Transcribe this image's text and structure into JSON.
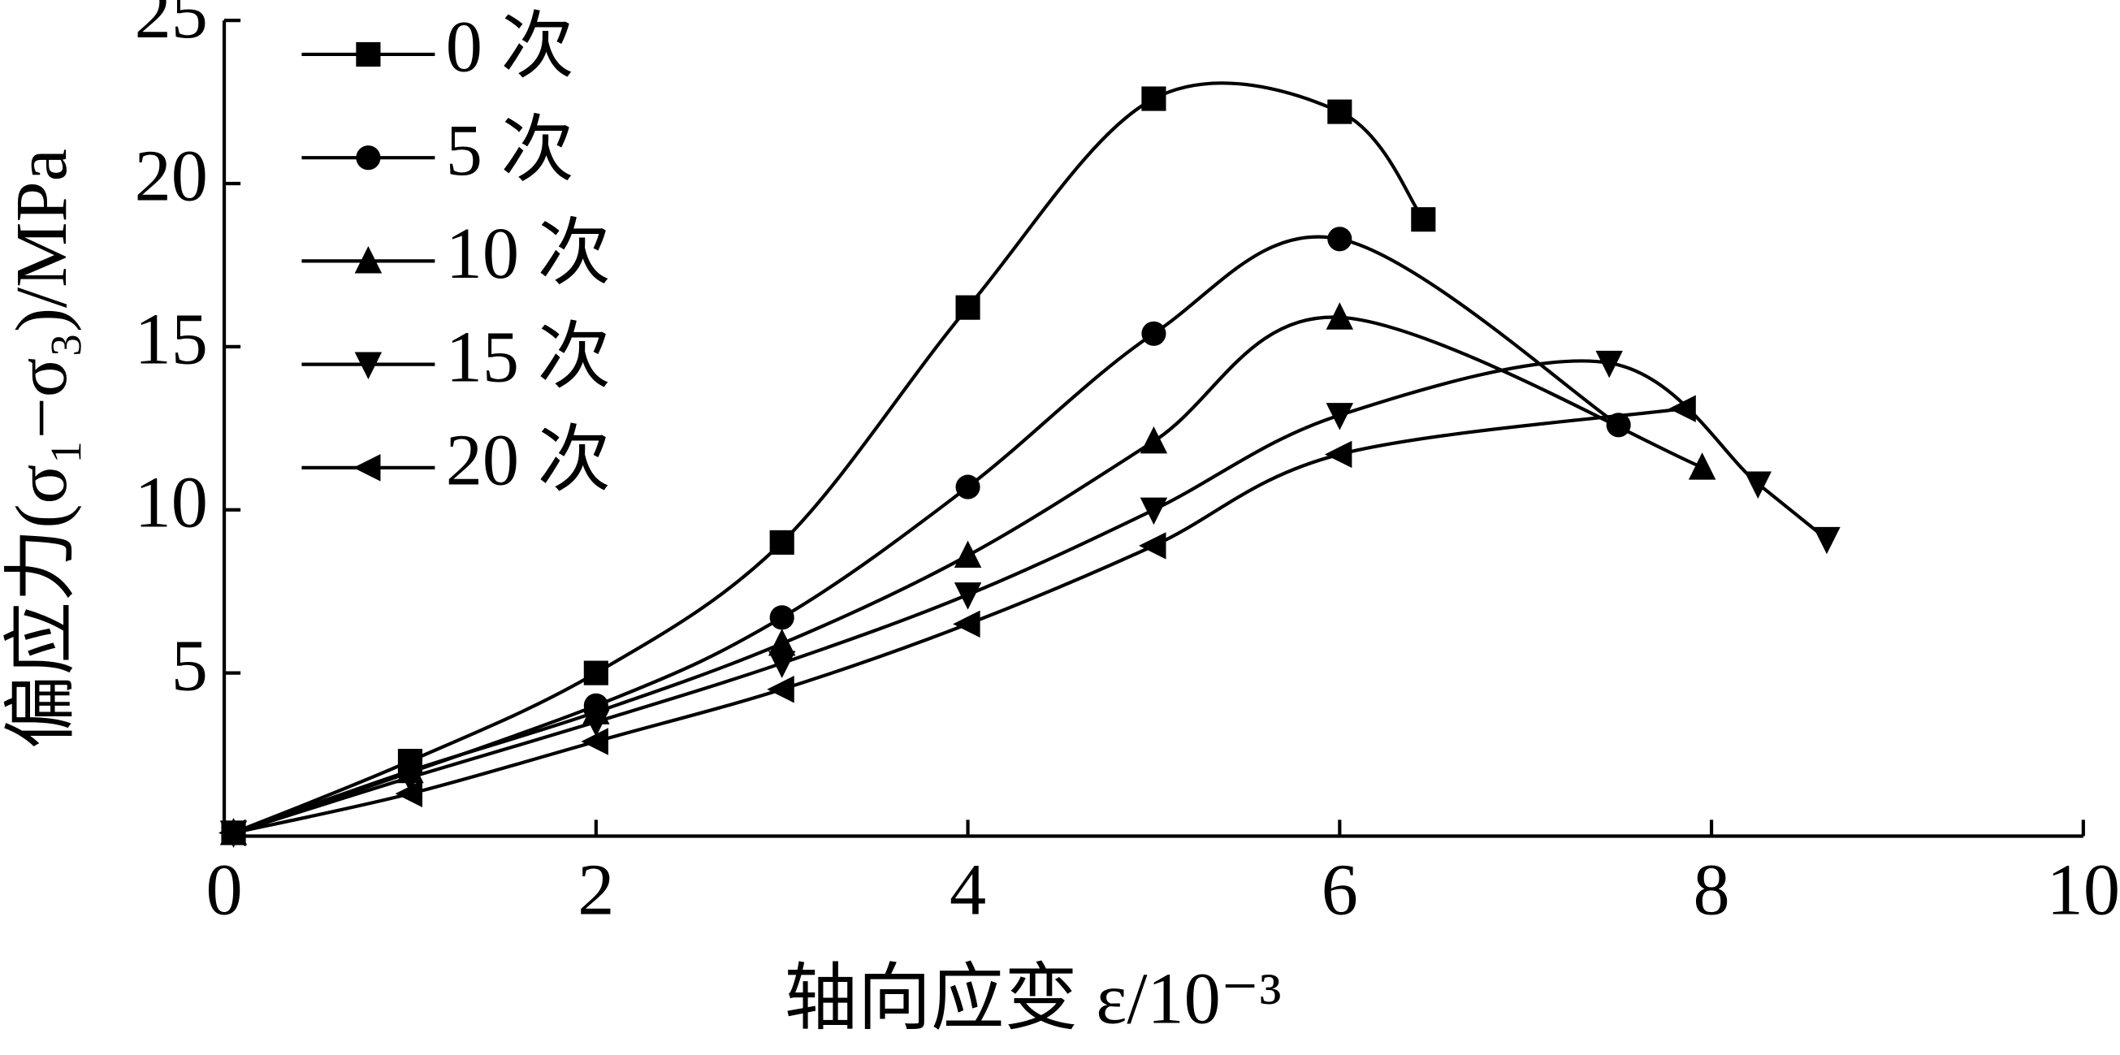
{
  "chart_data": {
    "type": "line",
    "x_label": "轴向应变 ε/10⁻³",
    "y_label": "偏应力(σ₁−σ₃)/MPa",
    "xlim": [
      0,
      10
    ],
    "ylim": [
      0,
      25
    ],
    "xticks": [
      0,
      2,
      4,
      6,
      8,
      10
    ],
    "yticks": [
      5,
      10,
      15,
      20,
      25
    ],
    "legend": "upper left",
    "series": [
      {
        "name": "0 次",
        "color": "#000000",
        "marker": "square",
        "x": [
          0.05,
          1,
          2,
          3,
          4,
          5,
          6,
          6.45
        ],
        "values": [
          0.1,
          2.3,
          5.0,
          9.0,
          16.2,
          22.6,
          22.2,
          18.9
        ]
      },
      {
        "name": "5 次",
        "color": "#000000",
        "marker": "circle",
        "x": [
          0.05,
          2,
          3,
          4,
          5,
          6,
          7.5
        ],
        "values": [
          0.1,
          4.0,
          6.7,
          10.7,
          15.4,
          18.3,
          12.6
        ]
      },
      {
        "name": "10 次",
        "color": "#000000",
        "marker": "triangle-up",
        "x": [
          0.05,
          1,
          2,
          3,
          4,
          5,
          6,
          7.95
        ],
        "values": [
          0.1,
          2.0,
          3.8,
          5.9,
          8.6,
          12.1,
          15.9,
          11.3
        ]
      },
      {
        "name": "15 次",
        "color": "#000000",
        "marker": "triangle-down",
        "x": [
          0.05,
          1,
          2,
          3,
          4,
          5,
          6,
          7.45,
          8.25,
          8.62
        ],
        "values": [
          0.1,
          1.8,
          3.5,
          5.3,
          7.4,
          10.0,
          12.9,
          14.5,
          10.8,
          9.1
        ]
      },
      {
        "name": "20 次",
        "color": "#000000",
        "marker": "triangle-left",
        "x": [
          0.05,
          1,
          2,
          3,
          4,
          5,
          6,
          7.85
        ],
        "values": [
          0.1,
          1.3,
          2.9,
          4.5,
          6.5,
          8.9,
          11.7,
          13.1
        ]
      }
    ]
  }
}
